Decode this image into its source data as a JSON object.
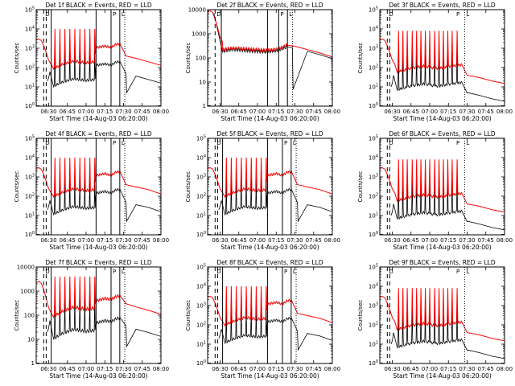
{
  "figure": {
    "xlabel": "Start Time (14-Aug-03 06:20:00)",
    "ylabel": "Counts/sec",
    "x_tick_labels": [
      "06:30",
      "06:45",
      "07:00",
      "07:15",
      "07:30",
      "07:45",
      "08:00"
    ],
    "colors": {
      "events": "#000000",
      "lld": "#ff0000"
    },
    "edge_letters": [
      "D",
      "P",
      "L"
    ]
  },
  "chart_data": [
    {
      "type": "line",
      "title": "Det 1f BLACK = Events, RED = LLD",
      "xlim_minutes": [
        0,
        100
      ],
      "ylog": true,
      "ylim": [
        1,
        100000
      ],
      "y_tick_labels": [
        "10^0",
        "10^1",
        "10^2",
        "10^3",
        "10^4",
        "10^5"
      ],
      "vlines": {
        "dashed": [
          6,
          8
        ],
        "solid": [
          12,
          48,
          60,
          67
        ],
        "dotted": [
          71
        ]
      },
      "baseline": [
        [
          14,
          90
        ],
        [
          20,
          140
        ],
        [
          30,
          220
        ],
        [
          40,
          180
        ],
        [
          47,
          200
        ],
        [
          48,
          1100
        ],
        [
          55,
          1300
        ],
        [
          60,
          1100
        ],
        [
          64,
          1600
        ],
        [
          67,
          1700
        ]
      ],
      "tail": [
        [
          72,
          400
        ],
        [
          80,
          300
        ],
        [
          90,
          200
        ],
        [
          100,
          130
        ]
      ],
      "spikes": {
        "start": 14,
        "step": 4,
        "count": 9,
        "lld": 10000,
        "events": 900,
        "drop": 25
      },
      "events_ratio": 0.12,
      "early": {
        "lld_peak": 3000,
        "events": [
          [
            9,
            20
          ],
          [
            10,
            30
          ],
          [
            11,
            60
          ]
        ]
      }
    },
    {
      "type": "line",
      "title": "Det 2f BLACK = Events, RED = LLD",
      "xlim_minutes": [
        0,
        100
      ],
      "ylog": true,
      "ylim": [
        1,
        10000
      ],
      "y_tick_labels": [
        "1",
        "10",
        "100",
        "1000",
        "10000"
      ],
      "vlines": {
        "dashed": [
          6
        ],
        "solid": [
          11,
          48,
          57,
          64
        ],
        "dotted": [
          68
        ]
      },
      "baseline": [
        [
          12,
          220
        ],
        [
          20,
          260
        ],
        [
          30,
          240
        ],
        [
          40,
          220
        ],
        [
          47,
          210
        ],
        [
          55,
          230
        ],
        [
          60,
          280
        ],
        [
          64,
          350
        ]
      ],
      "tail": [
        [
          68,
          320
        ],
        [
          80,
          220
        ],
        [
          90,
          160
        ],
        [
          100,
          110
        ]
      ],
      "spikes": null,
      "events_ratio": 0.85,
      "early": {
        "lld_peak": 9000,
        "events": [
          [
            5,
            7000
          ]
        ]
      }
    },
    {
      "type": "line",
      "title": "Det 3f BLACK = Events, RED = LLD",
      "xlim_minutes": [
        0,
        100
      ],
      "ylog": true,
      "ylim": [
        1,
        100000
      ],
      "y_tick_labels": [
        "10^0",
        "10^1",
        "10^2",
        "10^3",
        "10^4",
        "10^5"
      ],
      "vlines": {
        "dashed": [
          6,
          8
        ],
        "dotted": [
          68
        ]
      },
      "baseline": [
        [
          14,
          60
        ],
        [
          25,
          90
        ],
        [
          35,
          120
        ],
        [
          45,
          90
        ],
        [
          55,
          110
        ],
        [
          62,
          130
        ],
        [
          66,
          140
        ]
      ],
      "tail": [
        [
          70,
          40
        ],
        [
          80,
          30
        ],
        [
          90,
          20
        ],
        [
          100,
          15
        ]
      ],
      "spikes": {
        "start": 14,
        "step": 3.6,
        "count": 14,
        "lld": 8000,
        "events": 700,
        "drop": 20
      },
      "events_ratio": 0.12,
      "early": {
        "lld_peak": 3000,
        "events": [
          [
            9,
            10
          ],
          [
            10,
            15
          ],
          [
            11,
            40
          ]
        ]
      }
    },
    {
      "type": "line",
      "title": "Det 4f BLACK = Events, RED = LLD",
      "xlim_minutes": [
        0,
        100
      ],
      "ylog": true,
      "ylim": [
        1,
        100000
      ],
      "y_tick_labels": [
        "10^0",
        "10^1",
        "10^2",
        "10^3",
        "10^4",
        "10^5"
      ],
      "vlines": {
        "dashed": [
          6,
          8
        ],
        "solid": [
          12,
          48,
          60,
          67
        ],
        "dotted": [
          71
        ]
      },
      "baseline": [
        [
          14,
          100
        ],
        [
          20,
          150
        ],
        [
          30,
          250
        ],
        [
          40,
          200
        ],
        [
          47,
          220
        ],
        [
          48,
          1200
        ],
        [
          55,
          1500
        ],
        [
          60,
          1200
        ],
        [
          64,
          1800
        ],
        [
          67,
          1900
        ]
      ],
      "tail": [
        [
          72,
          400
        ],
        [
          80,
          300
        ],
        [
          90,
          220
        ],
        [
          100,
          130
        ]
      ],
      "spikes": {
        "start": 14,
        "step": 4,
        "count": 9,
        "lld": 10000,
        "events": 900,
        "drop": 25
      },
      "events_ratio": 0.12,
      "early": {
        "lld_peak": 3000,
        "events": [
          [
            9,
            20
          ],
          [
            10,
            30
          ],
          [
            11,
            60
          ]
        ]
      }
    },
    {
      "type": "line",
      "title": "Det 5f BLACK = Events, RED = LLD",
      "xlim_minutes": [
        0,
        100
      ],
      "ylog": true,
      "ylim": [
        1,
        100000
      ],
      "y_tick_labels": [
        "10^0",
        "10^1",
        "10^2",
        "10^3",
        "10^4",
        "10^5"
      ],
      "vlines": {
        "dashed": [
          6,
          8
        ],
        "solid": [
          12,
          48,
          60,
          67
        ],
        "dotted": [
          71
        ]
      },
      "baseline": [
        [
          14,
          100
        ],
        [
          20,
          150
        ],
        [
          30,
          250
        ],
        [
          40,
          200
        ],
        [
          47,
          220
        ],
        [
          48,
          1200
        ],
        [
          55,
          1500
        ],
        [
          60,
          1200
        ],
        [
          64,
          1800
        ],
        [
          67,
          1900
        ]
      ],
      "tail": [
        [
          72,
          400
        ],
        [
          80,
          300
        ],
        [
          90,
          220
        ],
        [
          100,
          130
        ]
      ],
      "spikes": {
        "start": 14,
        "step": 4,
        "count": 9,
        "lld": 10000,
        "events": 900,
        "drop": 25
      },
      "events_ratio": 0.12,
      "early": {
        "lld_peak": 3000,
        "events": [
          [
            9,
            20
          ],
          [
            10,
            30
          ],
          [
            11,
            60
          ]
        ]
      }
    },
    {
      "type": "line",
      "title": "Det 6f BLACK = Events, RED = LLD",
      "xlim_minutes": [
        0,
        100
      ],
      "ylog": true,
      "ylim": [
        1,
        100000
      ],
      "y_tick_labels": [
        "10^0",
        "10^1",
        "10^2",
        "10^3",
        "10^4",
        "10^5"
      ],
      "vlines": {
        "dashed": [
          6,
          8
        ],
        "dotted": [
          68
        ]
      },
      "baseline": [
        [
          14,
          60
        ],
        [
          25,
          90
        ],
        [
          35,
          120
        ],
        [
          45,
          90
        ],
        [
          55,
          110
        ],
        [
          62,
          130
        ],
        [
          66,
          140
        ]
      ],
      "tail": [
        [
          70,
          40
        ],
        [
          80,
          30
        ],
        [
          90,
          20
        ],
        [
          100,
          15
        ]
      ],
      "spikes": {
        "start": 14,
        "step": 3.6,
        "count": 14,
        "lld": 8000,
        "events": 700,
        "drop": 20
      },
      "events_ratio": 0.12,
      "early": {
        "lld_peak": 3000,
        "events": [
          [
            9,
            10
          ],
          [
            10,
            15
          ],
          [
            11,
            40
          ]
        ]
      }
    },
    {
      "type": "line",
      "title": "Det 7f BLACK = Events, RED = LLD",
      "xlim_minutes": [
        0,
        100
      ],
      "ylog": true,
      "ylim": [
        1,
        10000
      ],
      "y_tick_labels": [
        "1",
        "10",
        "100",
        "1000",
        "10000"
      ],
      "vlines": {
        "dashed": [
          6,
          8
        ],
        "solid": [
          12,
          48,
          60,
          67
        ],
        "dotted": [
          71
        ]
      },
      "baseline": [
        [
          14,
          90
        ],
        [
          20,
          140
        ],
        [
          30,
          220
        ],
        [
          40,
          180
        ],
        [
          47,
          200
        ],
        [
          48,
          400
        ],
        [
          55,
          500
        ],
        [
          60,
          450
        ],
        [
          64,
          600
        ],
        [
          67,
          650
        ]
      ],
      "tail": [
        [
          72,
          300
        ],
        [
          80,
          220
        ],
        [
          90,
          160
        ],
        [
          100,
          110
        ]
      ],
      "spikes": {
        "start": 14,
        "step": 4,
        "count": 9,
        "lld": 4000,
        "events": 600,
        "drop": 25
      },
      "events_ratio": 0.12,
      "early": {
        "lld_peak": 2500,
        "events": [
          [
            9,
            20
          ],
          [
            10,
            30
          ],
          [
            11,
            60
          ]
        ]
      }
    },
    {
      "type": "line",
      "title": "Det 8f BLACK = Events, RED = LLD",
      "xlim_minutes": [
        0,
        100
      ],
      "ylog": true,
      "ylim": [
        1,
        100000
      ],
      "y_tick_labels": [
        "10^0",
        "10^1",
        "10^2",
        "10^3",
        "10^4",
        "10^5"
      ],
      "vlines": {
        "dashed": [
          6,
          8
        ],
        "solid": [
          12,
          48,
          60,
          67
        ],
        "dotted": [
          71
        ]
      },
      "baseline": [
        [
          14,
          100
        ],
        [
          20,
          150
        ],
        [
          30,
          250
        ],
        [
          40,
          200
        ],
        [
          47,
          220
        ],
        [
          48,
          1200
        ],
        [
          55,
          1500
        ],
        [
          60,
          1200
        ],
        [
          64,
          1800
        ],
        [
          67,
          1900
        ]
      ],
      "tail": [
        [
          72,
          400
        ],
        [
          80,
          300
        ],
        [
          90,
          220
        ],
        [
          100,
          130
        ]
      ],
      "spikes": {
        "start": 14,
        "step": 4,
        "count": 9,
        "lld": 10000,
        "events": 900,
        "drop": 25
      },
      "events_ratio": 0.12,
      "early": {
        "lld_peak": 3000,
        "events": [
          [
            9,
            20
          ],
          [
            10,
            30
          ],
          [
            11,
            60
          ]
        ]
      }
    },
    {
      "type": "line",
      "title": "Det 9f BLACK = Events, RED = LLD",
      "xlim_minutes": [
        0,
        100
      ],
      "ylog": true,
      "ylim": [
        1,
        100000
      ],
      "y_tick_labels": [
        "10^0",
        "10^1",
        "10^2",
        "10^3",
        "10^4",
        "10^5"
      ],
      "vlines": {
        "dashed": [
          6,
          8
        ],
        "dotted": [
          68
        ]
      },
      "baseline": [
        [
          14,
          60
        ],
        [
          25,
          90
        ],
        [
          35,
          120
        ],
        [
          45,
          90
        ],
        [
          55,
          110
        ],
        [
          62,
          130
        ],
        [
          66,
          140
        ]
      ],
      "tail": [
        [
          70,
          40
        ],
        [
          80,
          30
        ],
        [
          90,
          20
        ],
        [
          100,
          15
        ]
      ],
      "spikes": {
        "start": 14,
        "step": 3.6,
        "count": 14,
        "lld": 8000,
        "events": 700,
        "drop": 20
      },
      "events_ratio": 0.12,
      "early": {
        "lld_peak": 3000,
        "events": [
          [
            9,
            10
          ],
          [
            10,
            15
          ],
          [
            11,
            40
          ]
        ]
      }
    }
  ]
}
